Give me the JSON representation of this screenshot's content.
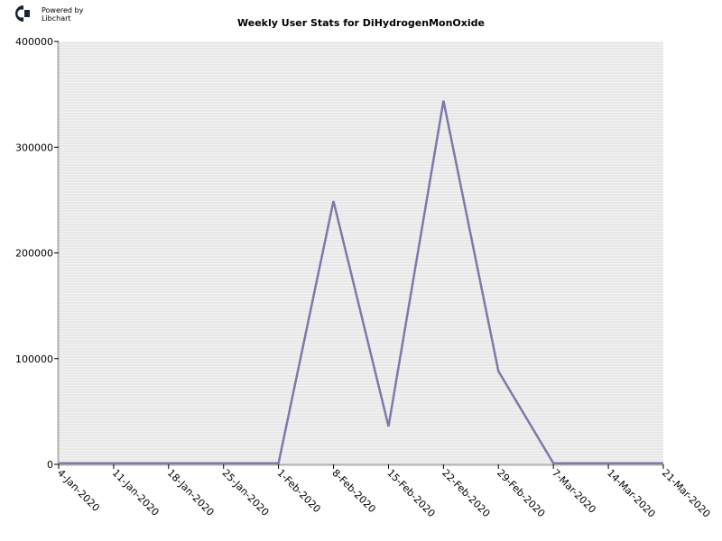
{
  "logo": {
    "line1": "Powered by",
    "line2": "Libchart"
  },
  "chart_data": {
    "type": "line",
    "title": "Weekly User Stats for DiHydrogenMonOxide",
    "xlabel": "",
    "ylabel": "",
    "ylim": [
      0,
      400000
    ],
    "y_ticks": [
      0,
      100000,
      200000,
      300000,
      400000
    ],
    "grid": true,
    "categories": [
      "4-Jan-2020",
      "11-Jan-2020",
      "18-Jan-2020",
      "25-Jan-2020",
      "1-Feb-2020",
      "8-Feb-2020",
      "15-Feb-2020",
      "22-Feb-2020",
      "29-Feb-2020",
      "7-Mar-2020",
      "14-Mar-2020",
      "21-Mar-2020"
    ],
    "series": [
      {
        "values": [
          1000,
          1000,
          1000,
          1000,
          1000,
          249000,
          36000,
          344000,
          88000,
          1000,
          1000,
          1000
        ]
      }
    ]
  },
  "colors": {
    "line": "#7b7ba8",
    "plot_background": "#f2f2f2",
    "gridline": "#dedede",
    "axis": "#b0b0b0",
    "logo": "#1a2338"
  }
}
